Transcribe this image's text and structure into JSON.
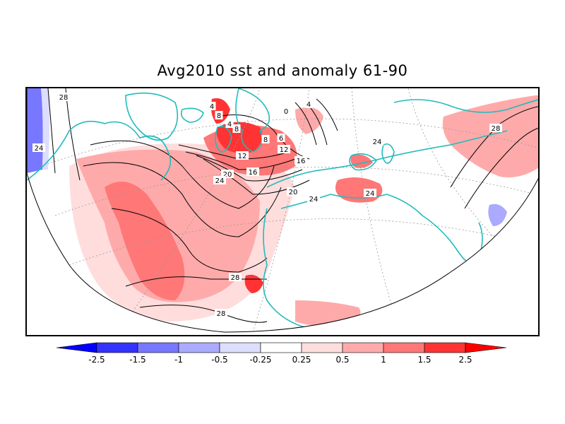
{
  "title": "Avg2010 sst and anomaly 61-90",
  "colors": {
    "coast": "#22bbbb",
    "contour": "#000000",
    "grid": "#999999",
    "shades": [
      "#0000ff",
      "#3333ff",
      "#7777ff",
      "#aaaaff",
      "#ddddff",
      "#ffffff",
      "#ffdddd",
      "#ffaaaa",
      "#ff7777",
      "#ff3333",
      "#ff0000"
    ]
  },
  "legend": {
    "labels": [
      "-2.5",
      "-1.5",
      "-1",
      "-0.5",
      "-0.25",
      "0.25",
      "0.5",
      "1",
      "1.5",
      "2.5"
    ]
  },
  "contour_labels": [
    "28",
    "24",
    "4",
    "8",
    "4",
    "8",
    "0",
    "4",
    "8",
    "6",
    "12",
    "12",
    "16",
    "16",
    "20",
    "24",
    "20",
    "24",
    "24",
    "24",
    "28",
    "28",
    "28"
  ]
}
